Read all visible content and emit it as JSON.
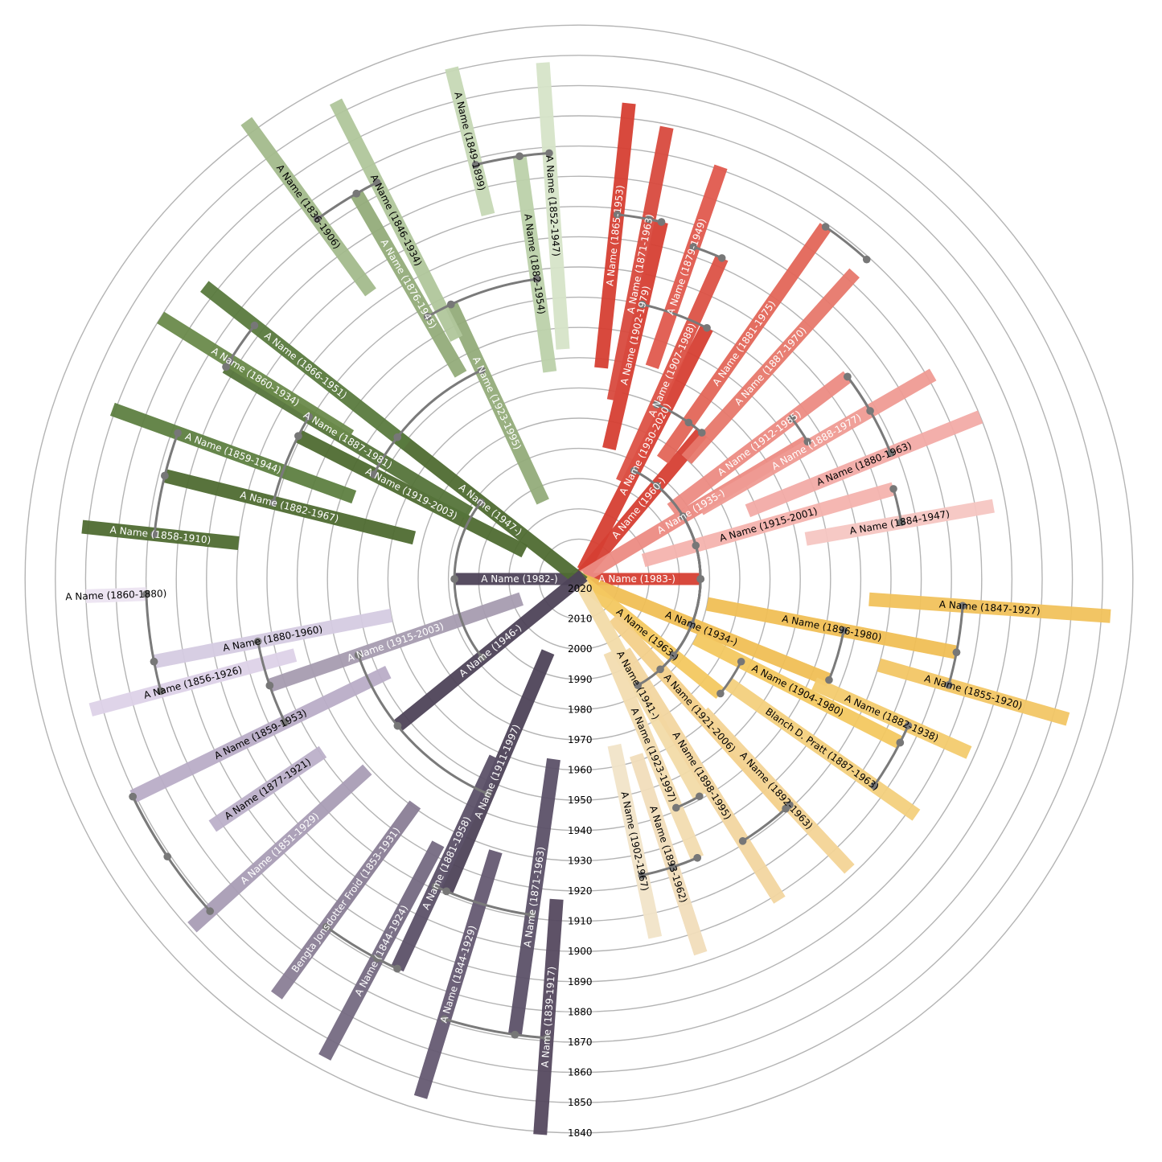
{
  "diagram": {
    "type": "radial family fan chart",
    "ring_years": [
      "2020",
      "2010",
      "2000",
      "1990",
      "1980",
      "1970",
      "1960",
      "1950",
      "1940",
      "1930",
      "1920",
      "1910",
      "1900",
      "1890",
      "1880",
      "1870",
      "1860",
      "1850",
      "1840"
    ],
    "ring_year_values": [
      2020,
      2010,
      2000,
      1990,
      1980,
      1970,
      1960,
      1950,
      1940,
      1930,
      1920,
      1910,
      1900,
      1890,
      1880,
      1870,
      1860,
      1850,
      1840
    ],
    "connector_color": "#7a7a7a",
    "ring_color": "#b4b4b4"
  },
  "people": [
    {
      "label": "A Name (1983-)",
      "born": 1983,
      "died": null,
      "angle": 0,
      "color": "#d63f33",
      "text": "#ffffff",
      "parent": null
    },
    {
      "label": "A Name (1982-)",
      "born": 1982,
      "died": null,
      "angle": 180,
      "color": "#4e4358",
      "text": "#ffffff",
      "parent": null
    },
    {
      "label": "A Name (1930-2020)",
      "born": 1930,
      "died": 2020,
      "angle": 63,
      "color": "#d63f33",
      "text": "#ffffff",
      "parent": 0
    },
    {
      "label": "A Name (1960-)",
      "born": 1960,
      "died": null,
      "angle": 50,
      "color": "#d63f33",
      "text": "#ffffff",
      "parent": 0
    },
    {
      "label": "A Name (1935-)",
      "born": 1935,
      "died": null,
      "angle": 31,
      "color": "#ec8b83",
      "text": "#ffffff",
      "parent": 0
    },
    {
      "label": "A Name (1915-2001)",
      "born": 1915,
      "died": 2001,
      "angle": 16,
      "color": "#f4b3ae",
      "text": "#000000",
      "parent": 0
    },
    {
      "label": "A Name (1902-1979)",
      "born": 1902,
      "died": 1979,
      "angle": 77,
      "color": "#d63f33",
      "text": "#ffffff",
      "parent": 2
    },
    {
      "label": "A Name (1865-1953)",
      "born": 1865,
      "died": 1953,
      "angle": 84,
      "color": "#d63f33",
      "text": "#ffffff",
      "parent": 6
    },
    {
      "label": "A Name (1871-1963)",
      "born": 1871,
      "died": 1963,
      "angle": 79,
      "color": "#d84a3e",
      "text": "#ffffff",
      "parent": 6
    },
    {
      "label": "A Name (1907-1988)",
      "born": 1907,
      "died": 1988,
      "angle": 66,
      "color": "#dc5246",
      "text": "#ffffff",
      "parent": 3
    },
    {
      "label": "A Name (1879-1949)",
      "born": 1879,
      "died": 1949,
      "angle": 71,
      "color": "#e05a4e",
      "text": "#ffffff",
      "parent": 9
    },
    {
      "label": "A Name (1881-1975)",
      "born": 1881,
      "died": 1975,
      "angle": 55,
      "color": "#e36658",
      "text": "#ffffff",
      "parent": 3
    },
    {
      "label": "A Name (1887-1970)",
      "born": 1887,
      "died": 1970,
      "angle": 48,
      "color": "#e7786c",
      "text": "#ffffff",
      "parent": 11
    },
    {
      "label": "A Name (1912-1985)",
      "born": 1912,
      "died": 1985,
      "angle": 37,
      "color": "#ec8b83",
      "text": "#ffffff",
      "parent": 4
    },
    {
      "label": "A Name (1888-1977)",
      "born": 1888,
      "died": 1977,
      "angle": 30,
      "color": "#ef9b94",
      "text": "#ffffff",
      "parent": 13
    },
    {
      "label": "A Name (1880-1963)",
      "born": 1880,
      "died": 1963,
      "angle": 22,
      "color": "#f2aba6",
      "text": "#000000",
      "parent": 13
    },
    {
      "label": "A Name (1884-1947)",
      "born": 1884,
      "died": 1947,
      "angle": 10,
      "color": "#f6c6c2",
      "text": "#000000",
      "parent": 5
    },
    {
      "label": "A Name (1934-)",
      "born": 1934,
      "died": null,
      "angle": -22,
      "color": "#f0bf55",
      "text": "#000000",
      "parent": 0
    },
    {
      "label": "A Name (1963-)",
      "born": 1963,
      "died": null,
      "angle": -39,
      "color": "#f3c860",
      "text": "#000000",
      "parent": 0
    },
    {
      "label": "A Name (1921-2006)",
      "born": 1921,
      "died": 2006,
      "angle": -48,
      "color": "#f3d08a",
      "text": "#000000",
      "parent": 0
    },
    {
      "label": "A Name (1941-)",
      "born": 1941,
      "died": null,
      "angle": -61,
      "color": "#f2dba8",
      "text": "#000000",
      "parent": 0
    },
    {
      "label": "A Name (1896-1980)",
      "born": 1896,
      "died": 1980,
      "angle": -11,
      "color": "#f0bf55",
      "text": "#000000",
      "parent": 17
    },
    {
      "label": "A Name (1847-1927)",
      "born": 1847,
      "died": 1927,
      "angle": -4,
      "color": "#f1c25c",
      "text": "#000000",
      "parent": 21
    },
    {
      "label": "A Name (1855-1920)",
      "born": 1855,
      "died": 1920,
      "angle": -16,
      "color": "#f2c665",
      "text": "#000000",
      "parent": 21
    },
    {
      "label": "A Name (1904-1980)",
      "born": 1904,
      "died": 1980,
      "angle": -27,
      "color": "#f3c860",
      "text": "#000000",
      "parent": 18
    },
    {
      "label": "A Name (1882-1938)",
      "born": 1882,
      "died": 1938,
      "angle": -24,
      "color": "#f3cb6e",
      "text": "#000000",
      "parent": 24
    },
    {
      "label": "Blanch D. Pratt (1887-1963)",
      "born": 1887,
      "died": 1963,
      "angle": -35,
      "color": "#f3d07d",
      "text": "#000000",
      "parent": 24
    },
    {
      "label": "A Name (1898-1995)",
      "born": 1898,
      "died": 1995,
      "angle": -58,
      "color": "#f2d6a0",
      "text": "#000000",
      "parent": 19
    },
    {
      "label": "A Name (1892-1963)",
      "born": 1892,
      "died": 1963,
      "angle": -47,
      "color": "#f3d496",
      "text": "#000000",
      "parent": 19
    },
    {
      "label": "A Name (1923-1997)",
      "born": 1923,
      "died": 1997,
      "angle": -67,
      "color": "#f2dcb0",
      "text": "#000000",
      "parent": 20
    },
    {
      "label": "A Name (1902-1967)",
      "born": 1902,
      "died": 1967,
      "angle": -78,
      "color": "#f1e4c8",
      "text": "#000000",
      "parent": 29
    },
    {
      "label": "A Name (1893-1962)",
      "born": 1893,
      "died": 1962,
      "angle": -72,
      "color": "#f1ddbb",
      "text": "#000000",
      "parent": 29
    },
    {
      "label": "A Name (1947-)",
      "born": 1947,
      "died": null,
      "angle": 142,
      "color": "#4f6b31",
      "text": "#ffffff",
      "parent": 1
    },
    {
      "label": "A Name (1919-2003)",
      "born": 1919,
      "died": 2003,
      "angle": 153,
      "color": "#4f6b31",
      "text": "#ffffff",
      "parent": 32
    },
    {
      "label": "A Name (1923-1995)",
      "born": 1923,
      "died": 1995,
      "angle": 115,
      "color": "#93ac7a",
      "text": "#ffffff",
      "parent": 32
    },
    {
      "label": "A Name (1887-1981)",
      "born": 1887,
      "died": 1981,
      "angle": 149,
      "color": "#55743a",
      "text": "#ffffff",
      "parent": 33
    },
    {
      "label": "A Name (1882-1967)",
      "born": 1882,
      "died": 1967,
      "angle": 166,
      "color": "#4f6b31",
      "text": "#ffffff",
      "parent": 33
    },
    {
      "label": "A Name (1866-1951)",
      "born": 1866,
      "died": 1951,
      "angle": 142,
      "color": "#5a7a3e",
      "text": "#ffffff",
      "parent": 35
    },
    {
      "label": "A Name (1860-1934)",
      "born": 1860,
      "died": 1934,
      "angle": 148,
      "color": "#6a8a4b",
      "text": "#ffffff",
      "parent": 35
    },
    {
      "label": "A Name (1859-1944)",
      "born": 1859,
      "died": 1944,
      "angle": 160,
      "color": "#5e7f41",
      "text": "#ffffff",
      "parent": 36
    },
    {
      "label": "A Name (1858-1910)",
      "born": 1858,
      "died": 1910,
      "angle": 174,
      "color": "#4f6b31",
      "text": "#ffffff",
      "parent": 36
    },
    {
      "label": "A Name (1876-1945)",
      "born": 1876,
      "died": 1945,
      "angle": 120,
      "color": "#93ac7a",
      "text": "#ffffff",
      "parent": 34
    },
    {
      "label": "A Name (1882-1954)",
      "born": 1882,
      "died": 1954,
      "angle": 98,
      "color": "#bcd1aa",
      "text": "#000000",
      "parent": 34
    },
    {
      "label": "A Name (1836-1906)",
      "born": 1836,
      "died": 1906,
      "angle": 126,
      "color": "#a3bb8c",
      "text": "#000000",
      "parent": 41
    },
    {
      "label": "A Name (1846-1934)",
      "born": 1846,
      "died": 1934,
      "angle": 117,
      "color": "#b0c69b",
      "text": "#000000",
      "parent": 41
    },
    {
      "label": "A Name (1849-1899)",
      "born": 1849,
      "died": 1899,
      "angle": 104,
      "color": "#c6d8b5",
      "text": "#000000",
      "parent": 42
    },
    {
      "label": "A Name (1852-1947)",
      "born": 1852,
      "died": 1947,
      "angle": 94,
      "color": "#d6e4c8",
      "text": "#000000",
      "parent": 42
    },
    {
      "label": "A Name (1946-)",
      "born": 1946,
      "died": null,
      "angle": -141,
      "color": "#4e4358",
      "text": "#ffffff",
      "parent": 1
    },
    {
      "label": "A Name (1915-2003)",
      "born": 1915,
      "died": 2003,
      "angle": -161,
      "color": "#a69cb0",
      "text": "#ffffff",
      "parent": 47
    },
    {
      "label": "A Name (1911-1997)",
      "born": 1911,
      "died": 1997,
      "angle": -113,
      "color": "#4e4358",
      "text": "#ffffff",
      "parent": 47
    },
    {
      "label": "A Name (1880-1960)",
      "born": 1880,
      "died": 1960,
      "angle": -169,
      "color": "#d5cbe2",
      "text": "#000000",
      "parent": 48
    },
    {
      "label": "A Name (1859-1953)",
      "born": 1859,
      "died": 1953,
      "angle": -154,
      "color": "#b9adc7",
      "text": "#000000",
      "parent": 48
    },
    {
      "label": "A Name (1860-1880)",
      "born": 1860,
      "died": 1880,
      "angle": -178,
      "color": "#ece4f1",
      "text": "#000000",
      "parent": 50
    },
    {
      "label": "A Name (1856-1926)",
      "born": 1856,
      "died": 1926,
      "angle": -165,
      "color": "#ddd2e8",
      "text": "#000000",
      "parent": 50
    },
    {
      "label": "A Name (1877-1921)",
      "born": 1877,
      "died": 1921,
      "angle": -146,
      "color": "#bcb0c9",
      "text": "#000000",
      "parent": 51
    },
    {
      "label": "A Name (1851-1929)",
      "born": 1851,
      "died": 1929,
      "angle": -138,
      "color": "#a99db5",
      "text": "#ffffff",
      "parent": 51
    },
    {
      "label": "A Name (1881-1958)",
      "born": 1881,
      "died": 1958,
      "angle": -115,
      "color": "#5c5168",
      "text": "#ffffff",
      "parent": 49
    },
    {
      "label": "A Name (1871-1963)",
      "born": 1871,
      "died": 1963,
      "angle": -98,
      "color": "#5c5168",
      "text": "#ffffff",
      "parent": 49
    },
    {
      "label": "Bengta Jonsdotter Froid (1853-1931)",
      "born": 1853,
      "died": 1931,
      "angle": -126,
      "color": "#8a7e96",
      "text": "#ffffff",
      "parent": 56
    },
    {
      "label": "A Name (1844-1924)",
      "born": 1844,
      "died": 1924,
      "angle": -118,
      "color": "#756a82",
      "text": "#ffffff",
      "parent": 56
    },
    {
      "label": "A Name (1844-1929)",
      "born": 1844,
      "died": 1929,
      "angle": -107,
      "color": "#655a72",
      "text": "#ffffff",
      "parent": 57
    },
    {
      "label": "A Name (1839-1917)",
      "born": 1839,
      "died": 1917,
      "angle": -94,
      "color": "#55495f",
      "text": "#ffffff",
      "parent": 57
    }
  ]
}
